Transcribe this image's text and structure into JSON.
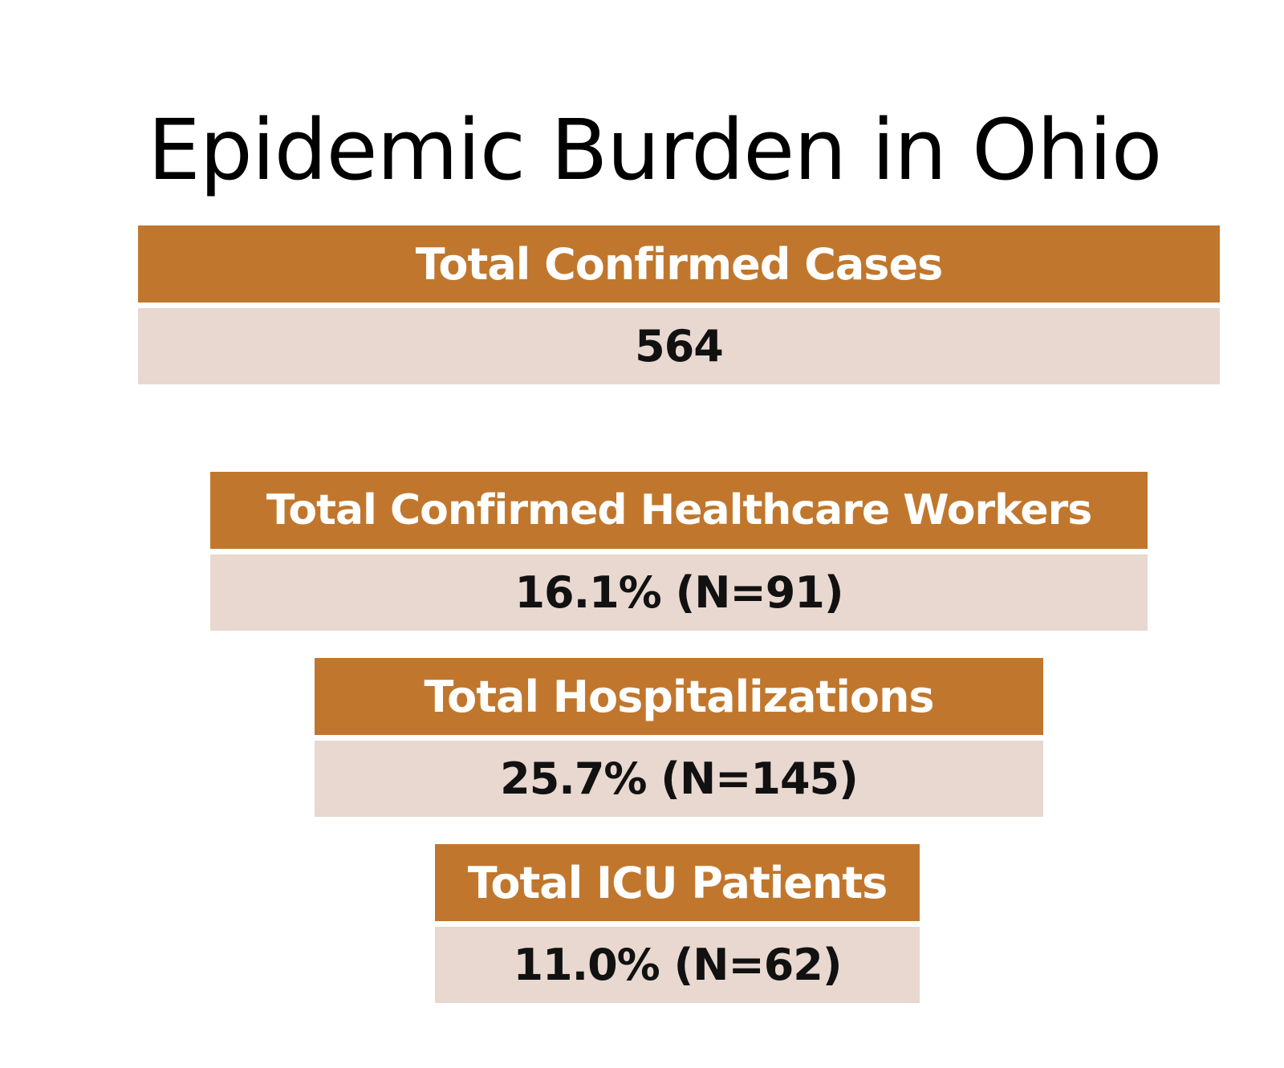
{
  "title": "Epidemic Burden in Ohio",
  "colors": {
    "header_bg": "#C0772D",
    "value_bg": "#E8D8D0",
    "header_text": "#FFFFFF",
    "value_text": "#111111"
  },
  "stats": [
    {
      "label": "Total Confirmed Cases",
      "value": "564"
    },
    {
      "label": "Total Confirmed Healthcare Workers",
      "value": "16.1% (N=91)"
    },
    {
      "label": "Total Hospitalizations",
      "value": "25.7% (N=145)"
    },
    {
      "label": "Total ICU Patients",
      "value": "11.0% (N=62)"
    }
  ]
}
